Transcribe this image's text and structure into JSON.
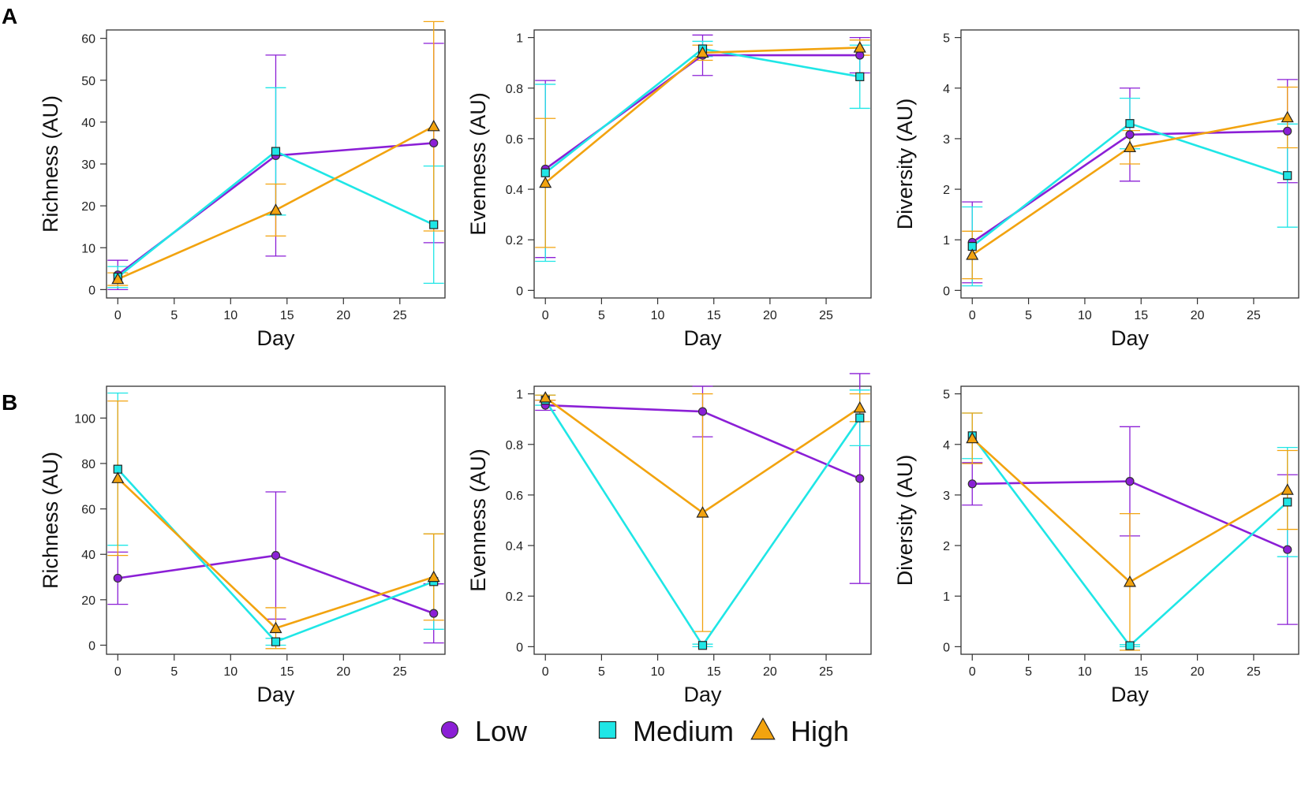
{
  "figure": {
    "panel_labels": [
      "A",
      "B"
    ],
    "series_colors": {
      "Low": "#8b1fd6",
      "Medium": "#1fe6e6",
      "High": "#f2a30f"
    },
    "legend": [
      {
        "name": "Low",
        "marker": "circle",
        "color": "#8b1fd6"
      },
      {
        "name": "Medium",
        "marker": "square",
        "color": "#1fe6e6"
      },
      {
        "name": "High",
        "marker": "triangle",
        "color": "#f2a30f"
      }
    ]
  },
  "chart_data": [
    {
      "type": "line",
      "panel": "A",
      "title": "",
      "xlabel": "Day",
      "ylabel": "Richness (AU)",
      "xlim": [
        -1,
        29
      ],
      "ylim": [
        -2,
        62
      ],
      "xticks": [
        0,
        5,
        10,
        15,
        20,
        25
      ],
      "yticks": [
        0,
        10,
        20,
        30,
        40,
        50,
        60
      ],
      "x": [
        0,
        14,
        28
      ],
      "series": [
        {
          "name": "Low",
          "values": [
            3.5,
            32,
            35
          ],
          "err": [
            3.5,
            24,
            23.8
          ]
        },
        {
          "name": "Medium",
          "values": [
            3,
            33,
            15.5
          ],
          "err": [
            2.5,
            15.2,
            14
          ]
        },
        {
          "name": "High",
          "values": [
            2.5,
            19,
            39
          ],
          "err": [
            1.5,
            6.2,
            25
          ]
        }
      ]
    },
    {
      "type": "line",
      "panel": "A",
      "title": "",
      "xlabel": "Day",
      "ylabel": "Evenness (AU)",
      "xlim": [
        -1,
        29
      ],
      "ylim": [
        -0.03,
        1.03
      ],
      "xticks": [
        0,
        5,
        10,
        15,
        20,
        25
      ],
      "yticks": [
        0.0,
        0.2,
        0.4,
        0.6,
        0.8,
        1.0
      ],
      "x": [
        0,
        14,
        28
      ],
      "series": [
        {
          "name": "Low",
          "values": [
            0.48,
            0.93,
            0.93
          ],
          "err": [
            0.35,
            0.08,
            0.07
          ]
        },
        {
          "name": "Medium",
          "values": [
            0.465,
            0.955,
            0.845
          ],
          "err": [
            0.35,
            0.03,
            0.125
          ]
        },
        {
          "name": "High",
          "values": [
            0.425,
            0.94,
            0.96
          ],
          "err": [
            0.255,
            0.03,
            0.03
          ]
        }
      ]
    },
    {
      "type": "line",
      "panel": "A",
      "title": "",
      "xlabel": "Day",
      "ylabel": "Diversity (AU)",
      "xlim": [
        -1,
        29
      ],
      "ylim": [
        -0.15,
        5.15
      ],
      "xticks": [
        0,
        5,
        10,
        15,
        20,
        25
      ],
      "yticks": [
        0,
        1,
        2,
        3,
        4,
        5
      ],
      "x": [
        0,
        14,
        28
      ],
      "series": [
        {
          "name": "Low",
          "values": [
            0.95,
            3.08,
            3.15
          ],
          "err": [
            0.8,
            0.92,
            1.02
          ]
        },
        {
          "name": "Medium",
          "values": [
            0.87,
            3.3,
            2.27
          ],
          "err": [
            0.78,
            0.5,
            1.02
          ]
        },
        {
          "name": "High",
          "values": [
            0.7,
            2.83,
            3.42
          ],
          "err": [
            0.47,
            0.33,
            0.6
          ]
        }
      ]
    },
    {
      "type": "line",
      "panel": "B",
      "title": "",
      "xlabel": "Day",
      "ylabel": "Richness (AU)",
      "xlim": [
        -1,
        29
      ],
      "ylim": [
        -4,
        114
      ],
      "xticks": [
        0,
        5,
        10,
        15,
        20,
        25
      ],
      "yticks": [
        0,
        20,
        40,
        60,
        80,
        100
      ],
      "x": [
        0,
        14,
        28
      ],
      "series": [
        {
          "name": "Low",
          "values": [
            29.5,
            39.5,
            14
          ],
          "err": [
            11.5,
            28,
            13
          ]
        },
        {
          "name": "Medium",
          "values": [
            77.5,
            1.5,
            28
          ],
          "err": [
            33.5,
            1.5,
            21
          ]
        },
        {
          "name": "High",
          "values": [
            73.5,
            7.5,
            30
          ],
          "err": [
            34,
            9,
            19
          ]
        }
      ]
    },
    {
      "type": "line",
      "panel": "B",
      "title": "",
      "xlabel": "Day",
      "ylabel": "Evenness (AU)",
      "xlim": [
        -1,
        29
      ],
      "ylim": [
        -0.03,
        1.03
      ],
      "xticks": [
        0,
        5,
        10,
        15,
        20,
        25
      ],
      "yticks": [
        0.0,
        0.2,
        0.4,
        0.6,
        0.8,
        1.0
      ],
      "x": [
        0,
        14,
        28
      ],
      "series": [
        {
          "name": "Low",
          "values": [
            0.955,
            0.93,
            0.665
          ],
          "err": [
            0.02,
            0.1,
            0.415
          ]
        },
        {
          "name": "Medium",
          "values": [
            0.975,
            0.005,
            0.905
          ],
          "err": [
            0.02,
            0.005,
            0.11
          ]
        },
        {
          "name": "High",
          "values": [
            0.985,
            0.53,
            0.945
          ],
          "err": [
            0.01,
            0.47,
            0.055
          ]
        }
      ]
    },
    {
      "type": "line",
      "panel": "B",
      "title": "",
      "xlabel": "Day",
      "ylabel": "Diversity (AU)",
      "xlim": [
        -1,
        29
      ],
      "ylim": [
        -0.15,
        5.15
      ],
      "xticks": [
        0,
        5,
        10,
        15,
        20,
        25
      ],
      "yticks": [
        0,
        1,
        2,
        3,
        4,
        5
      ],
      "x": [
        0,
        14,
        28
      ],
      "series": [
        {
          "name": "Low",
          "values": [
            3.22,
            3.27,
            1.92
          ],
          "err": [
            0.42,
            1.08,
            1.48
          ]
        },
        {
          "name": "Medium",
          "values": [
            4.17,
            0.02,
            2.86
          ],
          "err": [
            0.45,
            0.02,
            1.08
          ]
        },
        {
          "name": "High",
          "values": [
            4.12,
            1.28,
            3.1
          ],
          "err": [
            0.5,
            1.35,
            0.78
          ]
        }
      ]
    }
  ]
}
